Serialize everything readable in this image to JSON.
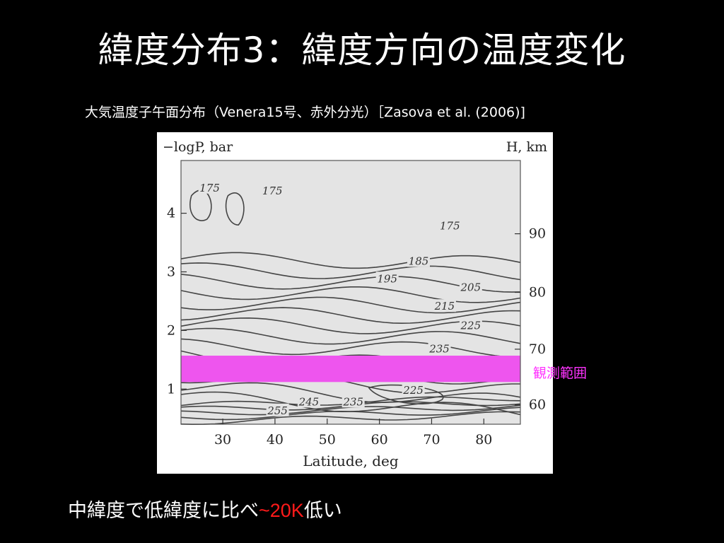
{
  "slide": {
    "title": "緯度分布3：緯度方向の温度変化",
    "caption": "大気温度子午面分布（Venera15号、赤外分光）［Zasova et al. (2006)]",
    "observation_band_label": "観測範囲",
    "bottom_text": {
      "prefix": "中緯度で低緯度に比べ",
      "highlight": "~20K",
      "suffix": "低い"
    },
    "colors": {
      "background": "#000000",
      "text": "#ffffff",
      "highlight": "#ff1a1a",
      "band": "#ee55ee",
      "plot_fill": "#e4e4e4"
    }
  },
  "chart_data": {
    "type": "contour",
    "xlabel": "Latitude, deg",
    "ylabel_left": "−logP, bar",
    "ylabel_right": "H, km",
    "xlim": [
      22,
      87
    ],
    "ylim": [
      0.4,
      4.9
    ],
    "x_ticks": [
      30,
      40,
      50,
      60,
      70,
      80
    ],
    "y_ticks_left": [
      1,
      2,
      3,
      4
    ],
    "y_ticks_right": [
      {
        "label": "60",
        "y": 0.73
      },
      {
        "label": "70",
        "y": 1.68
      },
      {
        "label": "80",
        "y": 2.65
      },
      {
        "label": "90",
        "y": 3.65
      }
    ],
    "contour_labels": [
      {
        "text": "175",
        "x": 27.5,
        "y": 4.42
      },
      {
        "text": "175",
        "x": 39.5,
        "y": 4.37
      },
      {
        "text": "175",
        "x": 73.5,
        "y": 3.77
      },
      {
        "text": "185",
        "x": 67.5,
        "y": 3.17
      },
      {
        "text": "195",
        "x": 61.5,
        "y": 2.87
      },
      {
        "text": "205",
        "x": 77.5,
        "y": 2.72
      },
      {
        "text": "215",
        "x": 72.5,
        "y": 2.4
      },
      {
        "text": "225",
        "x": 77.5,
        "y": 2.07
      },
      {
        "text": "235",
        "x": 71.5,
        "y": 1.67
      },
      {
        "text": "225",
        "x": 66.5,
        "y": 0.97
      },
      {
        "text": "235",
        "x": 55.0,
        "y": 0.77
      },
      {
        "text": "245",
        "x": 46.5,
        "y": 0.77
      },
      {
        "text": "255",
        "x": 40.5,
        "y": 0.62
      }
    ],
    "observation_band": {
      "y_min": 1.12,
      "y_max": 1.57
    }
  }
}
